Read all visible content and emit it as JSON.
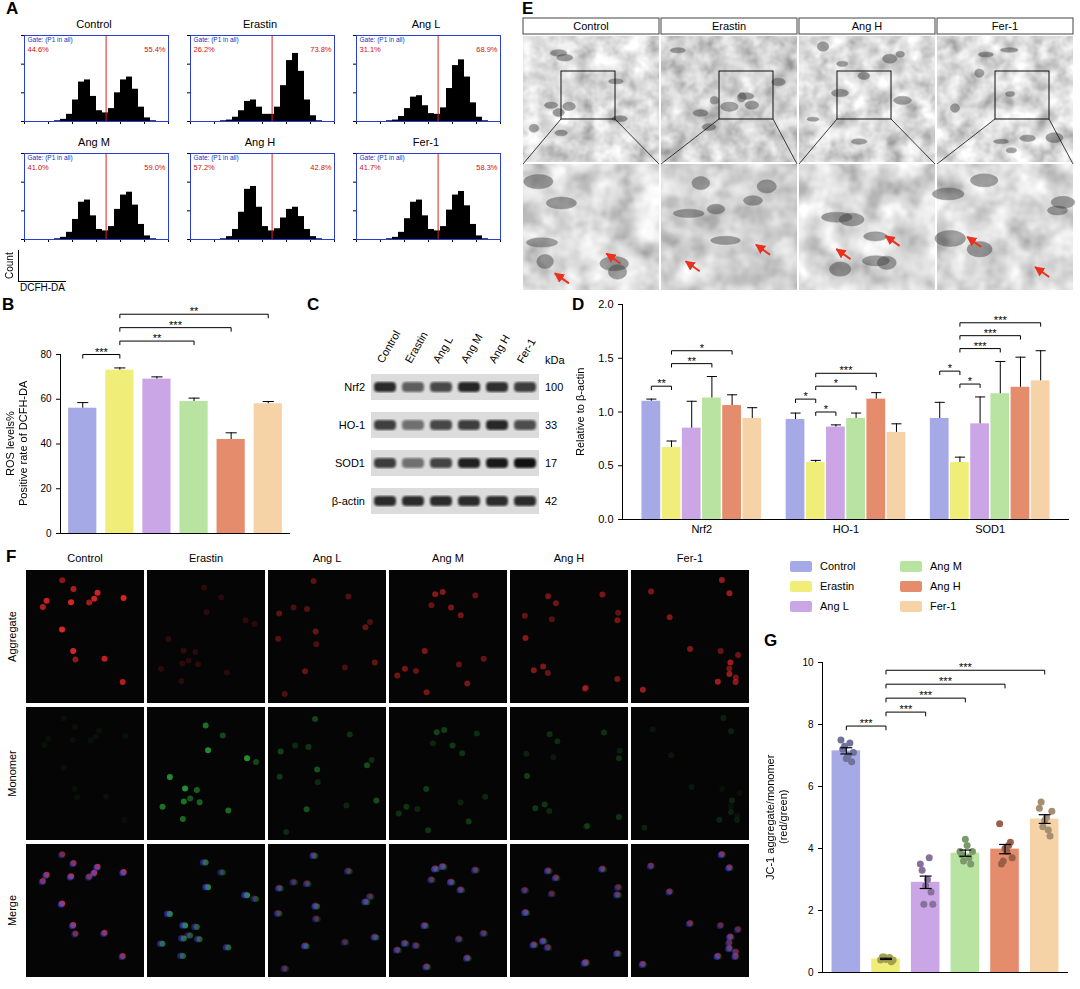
{
  "chart_data": [
    {
      "panel": "A",
      "type": "histogram",
      "gate_text": "Gate: (P1 in all)",
      "x_label": "DCFH-DA",
      "y_label": "Count",
      "xlim": [
        0,
        6
      ],
      "ylim": [
        0,
        120
      ],
      "xticks": [
        0,
        1,
        2,
        3,
        4,
        5,
        6
      ],
      "yticks": [
        0,
        40,
        80,
        120
      ],
      "tick_labels": false,
      "gate": 3.4,
      "color": "#000000",
      "bins": [
        0,
        0.25,
        0.5,
        0.75,
        1,
        1.25,
        1.5,
        1.75,
        2,
        2.25,
        2.5,
        2.75,
        3,
        3.25,
        3.5,
        3.75,
        4,
        4.25,
        4.5,
        4.75,
        5,
        5.25,
        5.5,
        5.75,
        6
      ],
      "subplots": [
        {
          "title": "Control",
          "percent_labels": [
            "44.6%",
            "55.4%"
          ],
          "counts": [
            0,
            0,
            0,
            0,
            0,
            1,
            3,
            10,
            30,
            55,
            58,
            35,
            15,
            12,
            18,
            40,
            58,
            62,
            45,
            20,
            5,
            1,
            0,
            0
          ]
        },
        {
          "title": "Erastin",
          "percent_labels": [
            "26.2%",
            "73.8%"
          ],
          "counts": [
            0,
            0,
            0,
            0,
            0,
            1,
            2,
            6,
            15,
            28,
            30,
            20,
            10,
            10,
            20,
            50,
            85,
            95,
            70,
            30,
            8,
            1,
            0,
            0
          ]
        },
        {
          "title": "Ang L",
          "percent_labels": [
            "31.1%",
            "68.9%"
          ],
          "counts": [
            0,
            0,
            0,
            0,
            0,
            1,
            2,
            7,
            18,
            34,
            36,
            22,
            11,
            10,
            19,
            46,
            78,
            86,
            62,
            26,
            6,
            1,
            0,
            0
          ]
        },
        {
          "title": "Ang M",
          "percent_labels": [
            "41.0%",
            "59.0%"
          ],
          "counts": [
            0,
            0,
            0,
            0,
            0,
            1,
            3,
            10,
            28,
            52,
            55,
            33,
            14,
            12,
            18,
            42,
            62,
            66,
            48,
            21,
            5,
            1,
            0,
            0
          ]
        },
        {
          "title": "Ang H",
          "percent_labels": [
            "57.2%",
            "42.8%"
          ],
          "counts": [
            0,
            0,
            0,
            0,
            0,
            1,
            4,
            14,
            38,
            70,
            74,
            45,
            18,
            12,
            15,
            30,
            42,
            45,
            32,
            14,
            4,
            1,
            0,
            0
          ]
        },
        {
          "title": "Fer-1",
          "percent_labels": [
            "41.7%",
            "58.3%"
          ],
          "counts": [
            0,
            0,
            0,
            0,
            0,
            1,
            3,
            10,
            29,
            52,
            55,
            33,
            14,
            12,
            18,
            41,
            62,
            67,
            47,
            21,
            5,
            1,
            0,
            0
          ]
        }
      ]
    },
    {
      "panel": "B",
      "type": "bar",
      "y_label": [
        "ROS levels%",
        "Positive rate of DCFH-DA"
      ],
      "categories": [
        "Control",
        "Erastin",
        "Ang L",
        "Ang M",
        "Ang H",
        "Fer-1"
      ],
      "values": [
        56,
        73,
        69,
        59,
        42,
        58
      ],
      "errors": [
        2.5,
        1,
        1,
        1.5,
        3,
        1
      ],
      "colors": [
        "#a5a9e6",
        "#f0ee78",
        "#caa6e6",
        "#b8e3a0",
        "#e48c6c",
        "#f6d3a6"
      ],
      "ylim": [
        0,
        80
      ],
      "yticks": [
        0,
        20,
        40,
        60,
        80
      ],
      "tick_labels": "y",
      "annotations": [
        {
          "from": "Control",
          "to": "Erastin",
          "label": "***"
        },
        {
          "from": "Erastin",
          "to": "Ang M",
          "label": "**"
        },
        {
          "from": "Erastin",
          "to": "Ang H",
          "label": "***"
        },
        {
          "from": "Erastin",
          "to": "Fer-1",
          "label": "**"
        }
      ]
    },
    {
      "panel": "C",
      "type": "blot",
      "unit": "kDa",
      "lanes": [
        "Control",
        "Erastin",
        "Ang L",
        "Ang M",
        "Ang H",
        "Fer-1"
      ],
      "rows": [
        {
          "name": "Nrf2",
          "kDa": 100
        },
        {
          "name": "HO-1",
          "kDa": 33
        },
        {
          "name": "SOD1",
          "kDa": 17
        },
        {
          "name": "β-actin",
          "kDa": 42
        }
      ]
    },
    {
      "panel": "D",
      "type": "bar",
      "y_label": "Relative to β-actin",
      "categories": [
        "Nrf2",
        "HO-1",
        "SOD1"
      ],
      "series": [
        {
          "name": "Control",
          "color": "#a5a9e6",
          "values": [
            1.1,
            0.93,
            0.94
          ],
          "errors": [
            0.02,
            0.06,
            0.15
          ]
        },
        {
          "name": "Erastin",
          "color": "#f0ee78",
          "values": [
            0.67,
            0.53,
            0.53
          ],
          "errors": [
            0.06,
            0.02,
            0.05
          ]
        },
        {
          "name": "Ang L",
          "color": "#caa6e6",
          "values": [
            0.85,
            0.86,
            0.89
          ],
          "errors": [
            0.25,
            0.02,
            0.25
          ]
        },
        {
          "name": "Ang M",
          "color": "#b8e3a0",
          "values": [
            1.13,
            0.94,
            1.17
          ],
          "errors": [
            0.2,
            0.05,
            0.3
          ]
        },
        {
          "name": "Ang H",
          "color": "#e48c6c",
          "values": [
            1.06,
            1.12,
            1.23
          ],
          "errors": [
            0.1,
            0.06,
            0.28
          ]
        },
        {
          "name": "Fer-1",
          "color": "#f6d3a6",
          "values": [
            0.94,
            0.81,
            1.29
          ],
          "errors": [
            0.1,
            0.08,
            0.28
          ]
        }
      ],
      "ylim": [
        0,
        2
      ],
      "yticks": [
        {
          "value": 0,
          "label": "0.0"
        },
        {
          "value": 0.5,
          "label": "0.5"
        },
        {
          "value": 1,
          "label": "1.0"
        },
        {
          "value": 1.5,
          "label": "1.5"
        },
        {
          "value": 2,
          "label": "2.0"
        }
      ],
      "legend": "bottom",
      "annotations": [
        {
          "category": "Nrf2",
          "from": "Control",
          "to": "Erastin",
          "label": "**"
        },
        {
          "category": "Nrf2",
          "from": "Erastin",
          "to": "Ang M",
          "label": "**"
        },
        {
          "category": "Nrf2",
          "from": "Erastin",
          "to": "Ang H",
          "label": "*"
        },
        {
          "category": "HO-1",
          "from": "Control",
          "to": "Erastin",
          "label": "*"
        },
        {
          "category": "HO-1",
          "from": "Erastin",
          "to": "Ang L",
          "label": "*"
        },
        {
          "category": "HO-1",
          "from": "Erastin",
          "to": "Ang M",
          "label": "*"
        },
        {
          "category": "HO-1",
          "from": "Erastin",
          "to": "Ang H",
          "label": "***"
        },
        {
          "category": "SOD1",
          "from": "Control",
          "to": "Erastin",
          "label": "*"
        },
        {
          "category": "SOD1",
          "from": "Erastin",
          "to": "Ang L",
          "label": "*"
        },
        {
          "category": "SOD1",
          "from": "Erastin",
          "to": "Ang M",
          "label": "***"
        },
        {
          "category": "SOD1",
          "from": "Erastin",
          "to": "Ang H",
          "label": "***"
        },
        {
          "category": "SOD1",
          "from": "Erastin",
          "to": "Fer-1",
          "label": "***"
        }
      ]
    },
    {
      "panel": "E",
      "type": "micrograph",
      "columns": [
        "Control",
        "Erastin",
        "Ang H",
        "Fer-1"
      ]
    },
    {
      "panel": "F",
      "type": "fluorescence_grid",
      "columns": [
        "Control",
        "Erastin",
        "Ang L",
        "Ang M",
        "Ang H",
        "Fer-1"
      ],
      "rows": [
        "Aggregate",
        "Monomer",
        "Merge"
      ]
    },
    {
      "panel": "G",
      "type": "bar",
      "marker": "circle",
      "y_label": [
        "JC-1 aggregate/monomer",
        "(red/green)"
      ],
      "categories": [
        "Control",
        "Erastin",
        "Ang L",
        "Ang M",
        "Ang H",
        "Fer-1"
      ],
      "values": [
        7.15,
        0.44,
        2.91,
        3.85,
        3.98,
        4.95
      ],
      "errors": [
        0.1,
        0.02,
        0.2,
        0.1,
        0.15,
        0.14
      ],
      "points": [
        [
          7.5,
          7.3,
          7.0,
          6.8,
          7.2,
          6.9,
          7.4,
          7.1
        ],
        [
          0.4,
          0.5,
          0.45,
          0.35,
          0.5,
          0.42,
          0.48,
          0.4
        ],
        [
          3.5,
          2.2,
          3.0,
          2.6,
          3.3,
          2.8,
          3.7,
          2.2
        ],
        [
          3.9,
          3.6,
          4.1,
          3.5,
          3.8,
          4.3,
          3.7,
          3.9
        ],
        [
          4.8,
          3.6,
          3.9,
          4.2,
          3.5,
          4.0,
          4.1,
          3.7
        ],
        [
          5.3,
          4.7,
          5.0,
          4.4,
          5.5,
          4.9,
          4.6,
          5.2
        ]
      ],
      "colors": [
        "#a5a9e6",
        "#f0ee78",
        "#caa6e6",
        "#b8e3a0",
        "#e48c6c",
        "#f6d3a6"
      ],
      "ylim": [
        0,
        10
      ],
      "yticks": [
        0,
        2,
        4,
        6,
        8,
        10
      ],
      "tick_labels": "y",
      "annotations": [
        {
          "from": "Control",
          "to": "Erastin",
          "label": "***"
        },
        {
          "from": "Erastin",
          "to": "Ang L",
          "label": "***"
        },
        {
          "from": "Erastin",
          "to": "Ang M",
          "label": "***"
        },
        {
          "from": "Erastin",
          "to": "Ang H",
          "label": "***"
        },
        {
          "from": "Erastin",
          "to": "Fer-1",
          "label": "***"
        }
      ]
    }
  ]
}
